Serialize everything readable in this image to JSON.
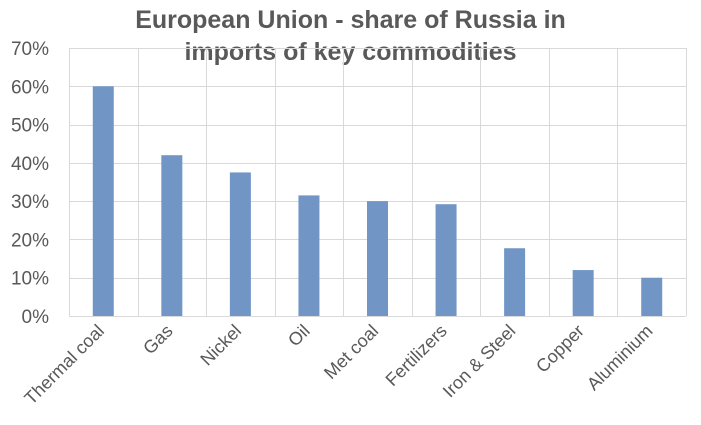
{
  "chart_data": {
    "type": "bar",
    "title_lines": [
      "European Union  - share of Russia  in",
      "imports of key commodities"
    ],
    "categories": [
      "Thermal coal",
      "Gas",
      "Nickel",
      "Oil",
      "Met coal",
      "Fertilizers",
      "Iron & Steel",
      "Copper",
      "Aluminium"
    ],
    "values": [
      0.6,
      0.42,
      0.375,
      0.315,
      0.3,
      0.292,
      0.177,
      0.12,
      0.1
    ],
    "ylim": [
      0,
      0.7
    ],
    "yticks": [
      "0%",
      "10%",
      "20%",
      "30%",
      "40%",
      "50%",
      "60%",
      "70%"
    ],
    "xlabel": "",
    "ylabel": "",
    "grid": true,
    "bar_color": "#7196c6",
    "grid_color": "#d9d9d9",
    "text_color": "#595959"
  }
}
